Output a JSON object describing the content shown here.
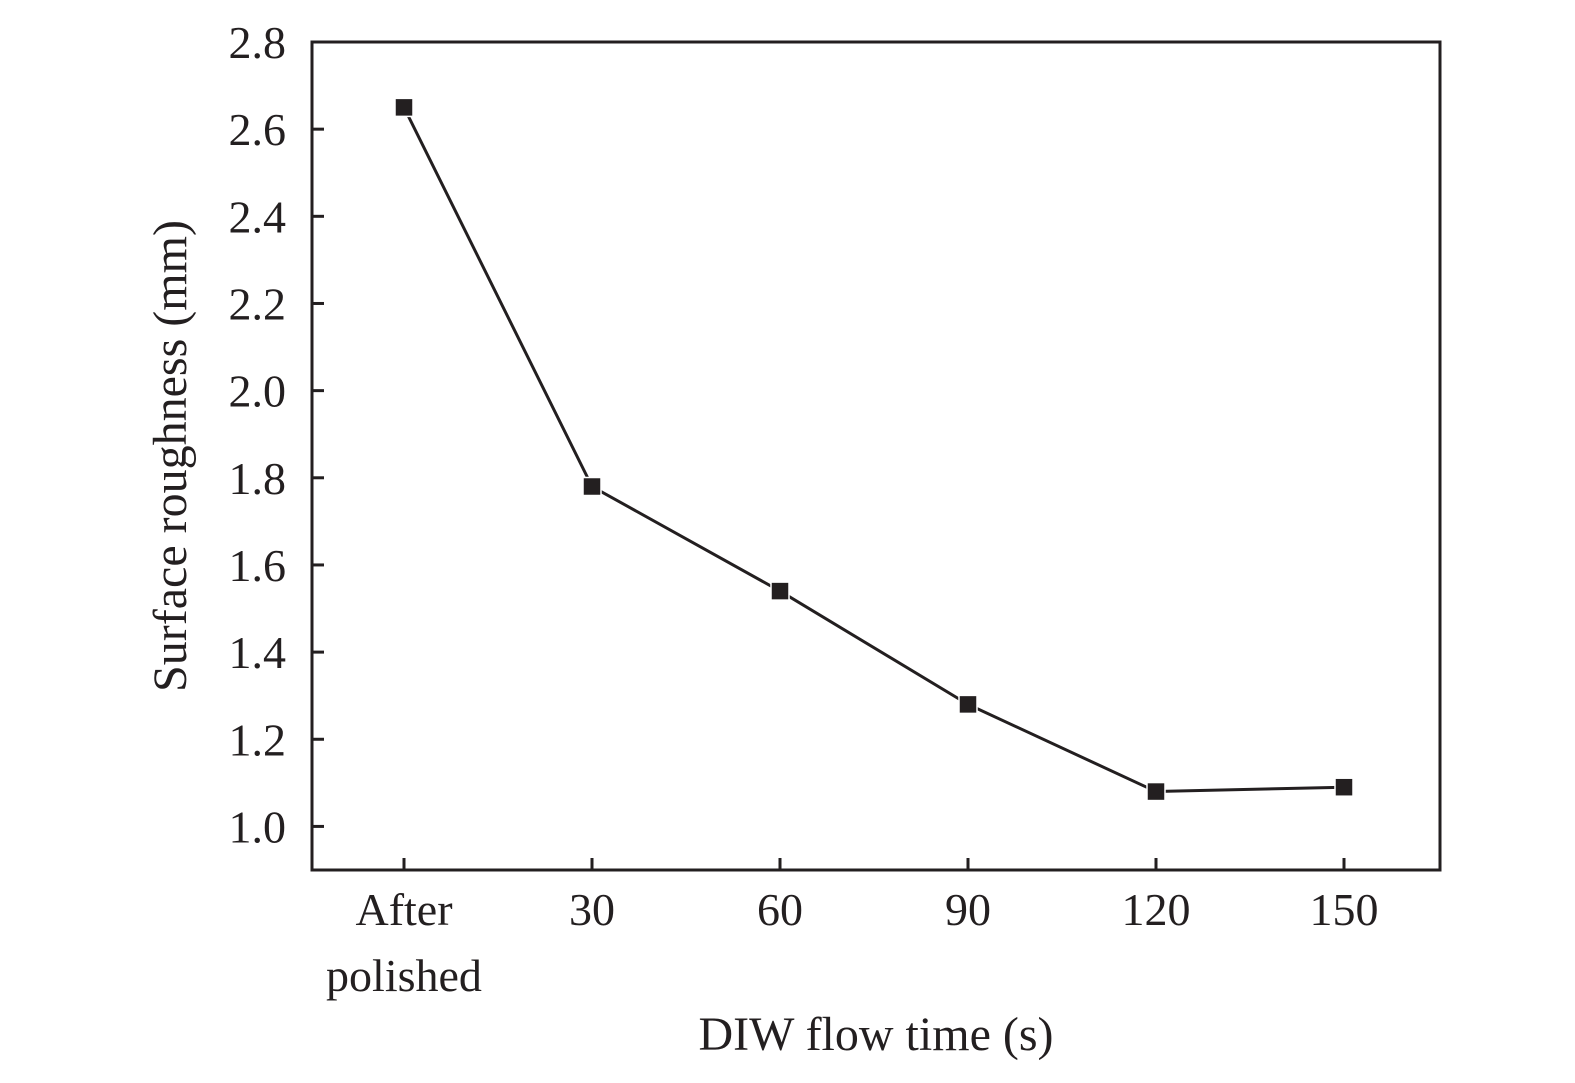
{
  "chart_data": {
    "type": "line",
    "categories": [
      "After polished",
      "30",
      "60",
      "90",
      "120",
      "150"
    ],
    "series": [
      {
        "values": [
          2.65,
          1.78,
          1.54,
          1.28,
          1.08,
          1.09
        ]
      }
    ],
    "title": "",
    "xlabel": "DIW flow time (s)",
    "ylabel": "Surface roughness (mm)",
    "ylim": [
      0.9,
      2.8
    ],
    "yticks": [
      "1.0",
      "1.2",
      "1.4",
      "1.6",
      "1.8",
      "2.0",
      "2.2",
      "2.4",
      "2.6",
      "2.8"
    ],
    "grid": false,
    "legend": "none",
    "marker": "square",
    "colors": {
      "line": "#231f20",
      "axis": "#231f20",
      "text": "#231f20"
    }
  }
}
